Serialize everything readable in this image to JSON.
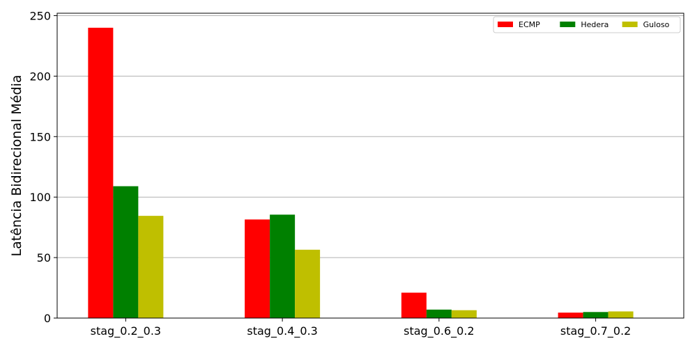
{
  "chart_data": {
    "type": "bar",
    "title": "",
    "xlabel": "",
    "ylabel": "Latência Bidirecional Média",
    "categories": [
      "stag_0.2_0.3",
      "stag_0.4_0.3",
      "stag_0.6_0.2",
      "stag_0.7_0.2"
    ],
    "series": [
      {
        "name": "ECMP",
        "color": "#ff0000",
        "values": [
          240,
          81.5,
          21,
          4.5
        ]
      },
      {
        "name": "Hedera",
        "color": "#008000",
        "values": [
          109,
          85.5,
          7,
          5
        ]
      },
      {
        "name": "Guloso",
        "color": "#bfbf00",
        "values": [
          84.5,
          56.5,
          6.5,
          5.5
        ]
      }
    ],
    "ylim": [
      0,
      252
    ],
    "yticks": [
      0,
      50,
      100,
      150,
      200,
      250
    ],
    "grid": "y",
    "legend_position": "top-right"
  }
}
